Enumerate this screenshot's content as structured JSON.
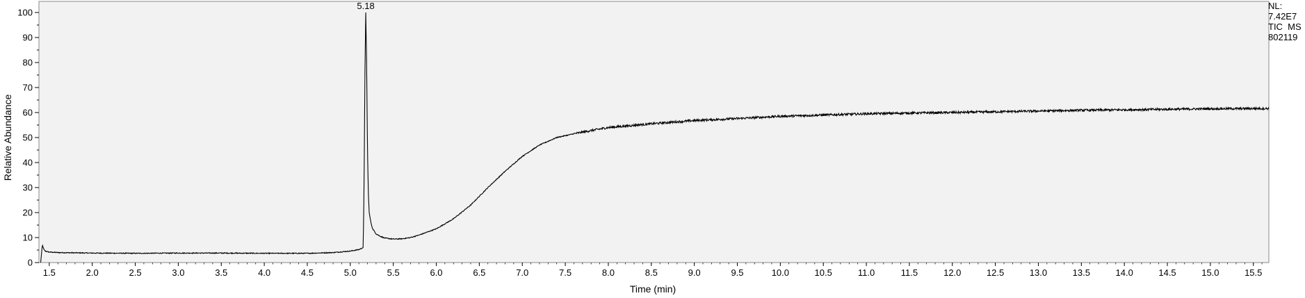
{
  "chart_data": {
    "type": "line",
    "title": "",
    "xlabel": "Time (min)",
    "ylabel": "Relative Abundance",
    "xlim": [
      1.38,
      15.68
    ],
    "ylim": [
      0,
      100
    ],
    "x_ticks": [
      1.5,
      2.0,
      2.5,
      3.0,
      3.5,
      4.0,
      4.5,
      5.0,
      5.5,
      6.0,
      6.5,
      7.0,
      7.5,
      8.0,
      8.5,
      9.0,
      9.5,
      10.0,
      10.5,
      11.0,
      11.5,
      12.0,
      12.5,
      13.0,
      13.5,
      14.0,
      14.5,
      15.0,
      15.5
    ],
    "x_tick_labels": [
      "1.5",
      "2.0",
      "2.5",
      "3.0",
      "3.5",
      "4.0",
      "4.5",
      "5.0",
      "5.5",
      "6.0",
      "6.5",
      "7.0",
      "7.5",
      "8.0",
      "8.5",
      "9.0",
      "9.5",
      "10.0",
      "10.5",
      "11.0",
      "11.5",
      "12.0",
      "12.5",
      "13.0",
      "13.5",
      "14.0",
      "14.5",
      "15.0",
      "15.5"
    ],
    "y_ticks": [
      0,
      10,
      20,
      30,
      40,
      50,
      60,
      70,
      80,
      90,
      100
    ],
    "y_tick_labels": [
      "0",
      "10",
      "20",
      "30",
      "40",
      "50",
      "60",
      "70",
      "80",
      "90",
      "100"
    ],
    "grid": false,
    "series": [
      {
        "color": "#000000",
        "x": [
          1.4,
          1.42,
          1.44,
          1.46,
          1.5,
          1.6,
          2.0,
          2.5,
          3.0,
          3.5,
          4.0,
          4.5,
          4.8,
          5.0,
          5.1,
          5.15,
          5.16,
          5.17,
          5.18,
          5.19,
          5.2,
          5.21,
          5.22,
          5.24,
          5.26,
          5.3,
          5.35,
          5.4,
          5.5,
          5.6,
          5.7,
          5.8,
          6.0,
          6.2,
          6.4,
          6.6,
          6.8,
          7.0,
          7.2,
          7.4,
          7.6,
          7.8,
          8.0,
          8.5,
          9.0,
          9.5,
          10.0,
          10.5,
          11.0,
          11.5,
          12.0,
          12.5,
          13.0,
          13.5,
          14.0,
          14.5,
          15.0,
          15.5,
          15.68
        ],
        "y": [
          0,
          7,
          5,
          4.5,
          4.2,
          4.0,
          3.8,
          3.7,
          3.8,
          3.8,
          3.7,
          3.7,
          4.0,
          4.6,
          5.2,
          6.0,
          30,
          75,
          100,
          80,
          45,
          28,
          20,
          16,
          13.5,
          11.5,
          10.5,
          9.8,
          9.4,
          9.5,
          10.0,
          11.0,
          13.5,
          17.5,
          23,
          30,
          36.5,
          42.5,
          47,
          50,
          51.5,
          52.8,
          54,
          55.5,
          56.8,
          57.6,
          58.5,
          59.0,
          59.5,
          59.8,
          60.0,
          60.3,
          60.6,
          60.9,
          61.1,
          61.3,
          61.5,
          61.6,
          61.6
        ]
      }
    ],
    "annotations": [
      {
        "text": "5.18",
        "x": 5.18,
        "y": 100
      }
    ]
  },
  "info": {
    "nl_label": "NL:",
    "nl_value": "7.42E7",
    "trace": "TIC  MS",
    "file": "802119"
  }
}
